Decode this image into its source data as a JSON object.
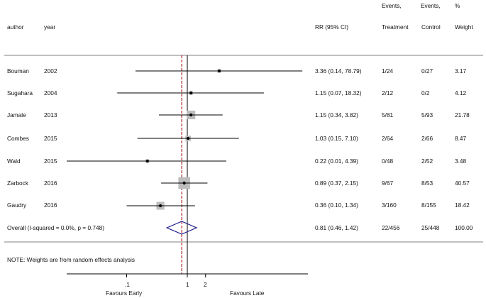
{
  "chart_data": {
    "type": "forest",
    "headers": {
      "author": "author",
      "year": "year",
      "rr": "RR (95% CI)",
      "events_treatment": [
        "Events,",
        "Treatment"
      ],
      "events_control": [
        "Events,",
        "Control"
      ],
      "weight": [
        "%",
        "Weight"
      ]
    },
    "studies": [
      {
        "author": "Bouman",
        "year": "2002",
        "rr": 3.36,
        "lo": 0.14,
        "hi": 78.79,
        "rr_text": "3.36 (0.14, 78.79)",
        "treatment": "1/24",
        "control": "0/27",
        "weight": 3.17,
        "weight_text": "3.17"
      },
      {
        "author": "Sugahara",
        "year": "2004",
        "rr": 1.15,
        "lo": 0.07,
        "hi": 18.32,
        "rr_text": "1.15 (0.07, 18.32)",
        "treatment": "2/12",
        "control": "0/2",
        "weight": 4.12,
        "weight_text": "4.12"
      },
      {
        "author": "Jamale",
        "year": "2013",
        "rr": 1.15,
        "lo": 0.34,
        "hi": 3.82,
        "rr_text": "1.15 (0.34, 3.82)",
        "treatment": "5/81",
        "control": "5/93",
        "weight": 21.78,
        "weight_text": "21.78"
      },
      {
        "author": "Combes",
        "year": "2015",
        "rr": 1.03,
        "lo": 0.15,
        "hi": 7.1,
        "rr_text": "1.03 (0.15, 7.10)",
        "treatment": "2/64",
        "control": "2/66",
        "weight": 8.47,
        "weight_text": "8.47"
      },
      {
        "author": "Wald",
        "year": "2015",
        "rr": 0.22,
        "lo": 0.01,
        "hi": 4.39,
        "rr_text": "0.22 (0.01, 4.39)",
        "treatment": "0/48",
        "control": "2/52",
        "weight": 3.48,
        "weight_text": "3.48"
      },
      {
        "author": "Zarbock",
        "year": "2016",
        "rr": 0.89,
        "lo": 0.37,
        "hi": 2.15,
        "rr_text": "0.89 (0.37, 2.15)",
        "treatment": "9/67",
        "control": "8/53",
        "weight": 40.57,
        "weight_text": "40.57"
      },
      {
        "author": "Gaudry",
        "year": "2016",
        "rr": 0.36,
        "lo": 0.1,
        "hi": 1.34,
        "rr_text": "0.36 (0.10, 1.34)",
        "treatment": "3/160",
        "control": "8/155",
        "weight": 18.42,
        "weight_text": "18.42"
      }
    ],
    "overall": {
      "label": "Overall  (I-squared = 0.0%, p = 0.748)",
      "rr": 0.81,
      "lo": 0.46,
      "hi": 1.42,
      "rr_text": "0.81 (0.46, 1.42)",
      "treatment": "22/456",
      "control": "25/448",
      "weight_text": "100.00"
    },
    "note": "NOTE: Weights are from random effects analysis",
    "x_axis": {
      "scale": "log",
      "ticks": [
        {
          "value": 0.1,
          "label": ".1"
        },
        {
          "value": 1,
          "label": "1"
        },
        {
          "value": 2,
          "label": "2"
        }
      ],
      "left_label": "Favours Early",
      "right_label": "Favours Late"
    },
    "null_line": 1,
    "pooled_line": 0.81,
    "colors": {
      "pooled_line": "#b22222",
      "diamond": "#1a1a8c",
      "weight_box": "#bdbdbd",
      "ci_line": "#000000"
    }
  }
}
